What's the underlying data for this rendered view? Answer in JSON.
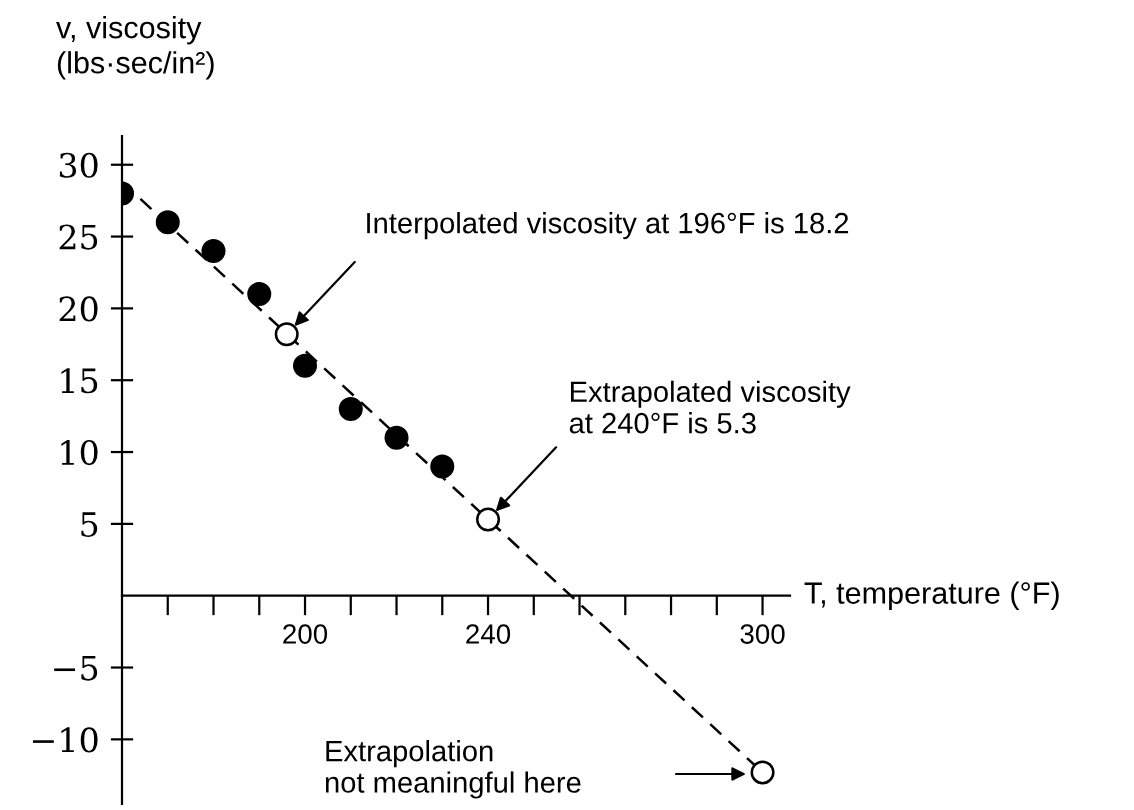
{
  "chart_data": {
    "type": "scatter",
    "xlabel": "T, temperature (°F)",
    "ylabel": "v, viscosity\n(lbs·sec/in²)",
    "series": [
      {
        "type": "line",
        "x": [
          160,
          300
        ],
        "values": [
          28.8,
          -12.3
        ],
        "color": "#000000",
        "line_style": "dashed",
        "marker": "none"
      },
      {
        "x": [
          160,
          170,
          180,
          190,
          200,
          210,
          220,
          230
        ],
        "values": [
          28,
          26,
          24,
          21,
          16,
          13,
          11,
          9
        ],
        "color": "#000000",
        "marker": "circle"
      },
      {
        "x": [
          196,
          240,
          300
        ],
        "values": [
          18.2,
          5.3,
          -12.3
        ],
        "color": "#ffffff",
        "marker": "circle"
      }
    ],
    "xlim": [
      160,
      306
    ],
    "xticks": [
      {
        "value": 170,
        "label": null
      },
      {
        "value": 180,
        "label": null
      },
      {
        "value": 190,
        "label": null
      },
      200,
      {
        "value": 210,
        "label": null
      },
      {
        "value": 220,
        "label": null
      },
      {
        "value": 230,
        "label": null
      },
      240,
      {
        "value": 250,
        "label": null
      },
      {
        "value": 260,
        "label": null
      },
      {
        "value": 270,
        "label": null
      },
      {
        "value": 280,
        "label": null
      },
      {
        "value": 290,
        "label": null
      },
      300
    ],
    "ylim": [
      -14.5,
      32
    ],
    "yticks": [
      {
        "value": -10,
        "label": "−10"
      },
      {
        "value": -5,
        "label": "−5"
      },
      5,
      10,
      15,
      20,
      25,
      30
    ],
    "grid": false,
    "legend": false,
    "annotations": [
      {
        "text": "Interpolated viscosity at 196°F is 18.2",
        "x": 196,
        "y": 18.2
      },
      {
        "text": "Extrapolated viscosity\nat 240°F is 5.3",
        "x": 240,
        "y": 5.3
      },
      "Extrapolation\nnot meaningful here"
    ]
  }
}
